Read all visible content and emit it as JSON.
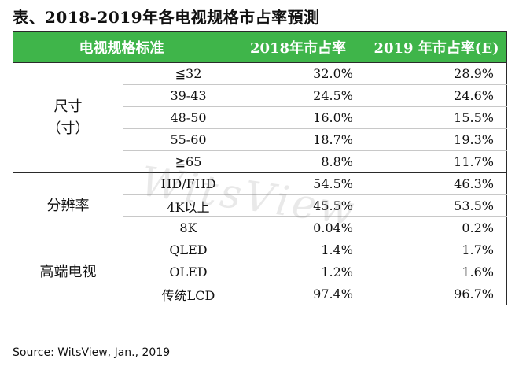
{
  "title": "表、2018-2019年各电视规格市占率預測",
  "table": {
    "headers": [
      "电视规格标准",
      "2018年市占率",
      "2019 年市占率(E)"
    ],
    "groups": [
      {
        "label_lines": [
          "尺寸",
          "（寸）"
        ],
        "rows": [
          {
            "spec": "≦32",
            "y2018": "32.0%",
            "y2019": "28.9%"
          },
          {
            "spec": "39-43",
            "y2018": "24.5%",
            "y2019": "24.6%"
          },
          {
            "spec": "48-50",
            "y2018": "16.0%",
            "y2019": "15.5%"
          },
          {
            "spec": "55-60",
            "y2018": "18.7%",
            "y2019": "19.3%"
          },
          {
            "spec": "≧65",
            "y2018": "8.8%",
            "y2019": "11.7%"
          }
        ]
      },
      {
        "label_lines": [
          "分辨率"
        ],
        "rows": [
          {
            "spec": "HD/FHD",
            "y2018": "54.5%",
            "y2019": "46.3%"
          },
          {
            "spec": "4K以上",
            "y2018": "45.5%",
            "y2019": "53.5%"
          },
          {
            "spec": "8K",
            "y2018": "0.04%",
            "y2019": "0.2%"
          }
        ]
      },
      {
        "label_lines": [
          "高端电视"
        ],
        "rows": [
          {
            "spec": "QLED",
            "y2018": "1.4%",
            "y2019": "1.7%"
          },
          {
            "spec": "OLED",
            "y2018": "1.2%",
            "y2019": "1.6%"
          },
          {
            "spec": "传统LCD",
            "y2018": "97.4%",
            "y2019": "96.7%"
          }
        ]
      }
    ]
  },
  "watermark": "WitsView",
  "source": "Source: WitsView, Jan., 2019",
  "colors": {
    "header_bg": "#3fb54a",
    "header_text": "#ffffff"
  }
}
